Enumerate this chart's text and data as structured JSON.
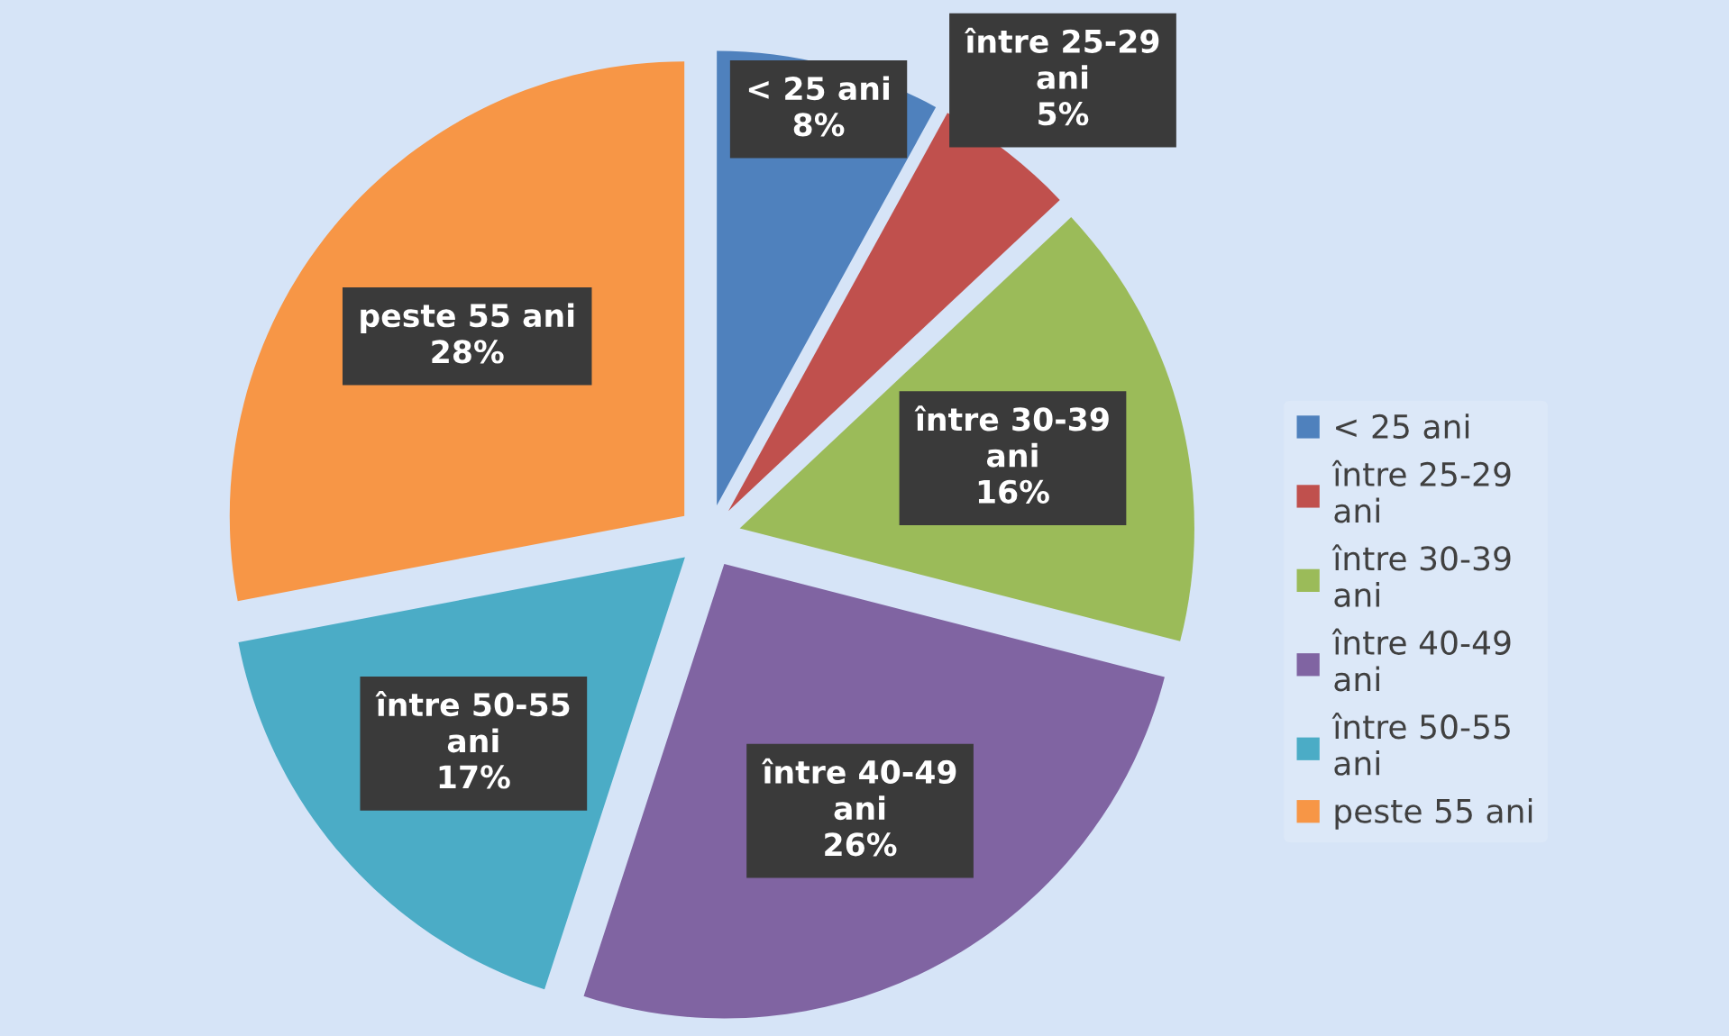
{
  "chart_data": {
    "type": "pie",
    "categories": [
      "< 25 ani",
      "între 25-29 ani",
      "între 30-39 ani",
      "între 40-49 ani",
      "între 50-55 ani",
      "peste 55 ani"
    ],
    "values": [
      8,
      5,
      16,
      26,
      17,
      28
    ],
    "colors": [
      "#4f81bd",
      "#c0504d",
      "#9bbb59",
      "#8064a2",
      "#4bacc6",
      "#f79646"
    ],
    "value_labels": [
      "8%",
      "5%",
      "16%",
      "26%",
      "17%",
      "28%"
    ],
    "legend": "right"
  }
}
